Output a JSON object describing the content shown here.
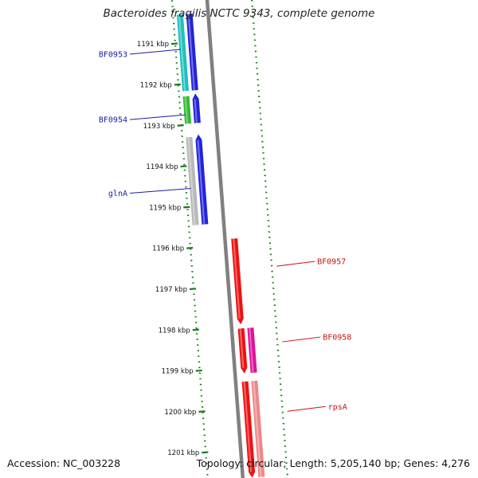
{
  "title": "Bacteroides fragilis NCTC 9343, complete genome",
  "footer": {
    "accession": "Accession: NC_003228",
    "summary": "Topology: circular; Length: 5,205,140 bp; Genes: 4,276"
  },
  "colors": {
    "backbone": "#808080",
    "tick": "#1a7a1a",
    "label_left": "#1a1aaa",
    "label_right": "#cc1111"
  },
  "ticks_kbp": [
    {
      "pos": 1191,
      "label": "1191 kbp"
    },
    {
      "pos": 1192,
      "label": "1192 kbp"
    },
    {
      "pos": 1193,
      "label": "1193 kbp"
    },
    {
      "pos": 1194,
      "label": "1194 kbp"
    },
    {
      "pos": 1195,
      "label": "1195 kbp"
    },
    {
      "pos": 1196,
      "label": "1196 kbp"
    },
    {
      "pos": 1197,
      "label": "1197 kbp"
    },
    {
      "pos": 1198,
      "label": "1198 kbp"
    },
    {
      "pos": 1199,
      "label": "1199 kbp"
    },
    {
      "pos": 1200,
      "label": "1200 kbp"
    },
    {
      "pos": 1201,
      "label": "1201 kbp"
    }
  ],
  "gene_labels": [
    {
      "text": "BF0953",
      "side": "left",
      "pos": 1191.15
    },
    {
      "text": "BF0954",
      "side": "left",
      "pos": 1192.75
    },
    {
      "text": "glnA",
      "side": "left",
      "pos": 1194.55
    },
    {
      "text": "BF0957",
      "side": "right",
      "pos": 1196.6
    },
    {
      "text": "BF0958",
      "side": "right",
      "pos": 1198.45
    },
    {
      "text": "rpsA",
      "side": "right",
      "pos": 1200.15
    }
  ],
  "features": [
    {
      "track": -3,
      "start": 1190.3,
      "end": 1192.17,
      "color": "#20c0c0",
      "arrow": "none"
    },
    {
      "track": -2,
      "start": 1190.3,
      "end": 1192.17,
      "color": "#2222dd",
      "arrow": "none"
    },
    {
      "track": -3,
      "start": 1192.3,
      "end": 1192.97,
      "color": "#33bb33",
      "arrow": "none"
    },
    {
      "track": -2,
      "start": 1192.25,
      "end": 1192.97,
      "color": "#2222dd",
      "arrow": "start"
    },
    {
      "track": -3,
      "start": 1193.3,
      "end": 1195.45,
      "color": "#b8b8b8",
      "arrow": "none"
    },
    {
      "track": -2,
      "start": 1193.25,
      "end": 1195.45,
      "color": "#2222dd",
      "arrow": "start"
    },
    {
      "track": 1,
      "start": 1195.85,
      "end": 1197.95,
      "color": "#ee1111",
      "arrow": "end"
    },
    {
      "track": 1,
      "start": 1198.05,
      "end": 1199.15,
      "color": "#ee1111",
      "arrow": "end"
    },
    {
      "track": 2,
      "start": 1198.05,
      "end": 1199.15,
      "color": "#dd1199",
      "arrow": "none"
    },
    {
      "track": 1,
      "start": 1199.35,
      "end": 1201.7,
      "color": "#ee1111",
      "arrow": "end"
    },
    {
      "track": 2,
      "start": 1199.35,
      "end": 1201.7,
      "color": "#ee8888",
      "arrow": "none"
    }
  ]
}
